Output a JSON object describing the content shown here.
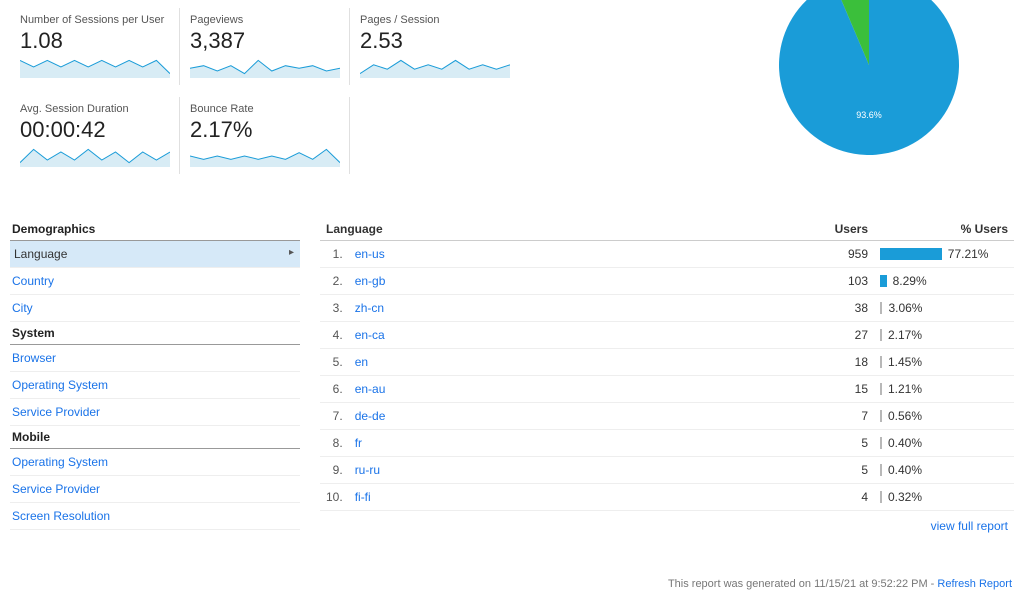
{
  "colors": {
    "primary": "#1a9cd8",
    "accent": "#3bbf3b",
    "link": "#1a73e8",
    "sparkFill": "#d8ecf5",
    "sparkLine": "#1a9cd8",
    "divider": "#e0e0e0",
    "barSecondary": "#b8b8b8"
  },
  "metrics": [
    {
      "label": "Number of Sessions per User",
      "value": "1.08",
      "spark": [
        12,
        11,
        12,
        11,
        12,
        11,
        12,
        11,
        12,
        11,
        12,
        10
      ]
    },
    {
      "label": "Pageviews",
      "value": "3,387",
      "spark": [
        11,
        12,
        10,
        12,
        9,
        14,
        10,
        12,
        11,
        12,
        10,
        11
      ]
    },
    {
      "label": "Pages / Session",
      "value": "2.53",
      "spark": [
        9,
        11,
        10,
        12,
        10,
        11,
        10,
        12,
        10,
        11,
        10,
        11
      ]
    },
    {
      "label": "Avg. Session Duration",
      "value": "00:00:42",
      "spark": [
        8,
        13,
        9,
        12,
        9,
        13,
        9,
        12,
        8,
        12,
        9,
        12
      ]
    },
    {
      "label": "Bounce Rate",
      "value": "2.17%",
      "spark": [
        11,
        10,
        11,
        10,
        11,
        10,
        11,
        10,
        12,
        10,
        13,
        9
      ]
    }
  ],
  "pie": {
    "slices": [
      {
        "pct": 93.6,
        "color": "#1a9cd8",
        "label": "93.6%"
      },
      {
        "pct": 6.4,
        "color": "#3bbf3b",
        "label": ""
      }
    ]
  },
  "nav": [
    {
      "category": "Demographics",
      "items": [
        {
          "label": "Language",
          "active": true
        },
        {
          "label": "Country",
          "active": false
        },
        {
          "label": "City",
          "active": false
        }
      ]
    },
    {
      "category": "System",
      "items": [
        {
          "label": "Browser",
          "active": false
        },
        {
          "label": "Operating System",
          "active": false
        },
        {
          "label": "Service Provider",
          "active": false
        }
      ]
    },
    {
      "category": "Mobile",
      "items": [
        {
          "label": "Operating System",
          "active": false
        },
        {
          "label": "Service Provider",
          "active": false
        },
        {
          "label": "Screen Resolution",
          "active": false
        }
      ]
    }
  ],
  "table": {
    "columns": [
      "Language",
      "Users",
      "% Users"
    ],
    "rows": [
      {
        "rank": "1.",
        "lang": "en-us",
        "users": "959",
        "pct": "77.21%",
        "barPct": 77.21,
        "barColor": "#1a9cd8"
      },
      {
        "rank": "2.",
        "lang": "en-gb",
        "users": "103",
        "pct": "8.29%",
        "barPct": 8.29,
        "barColor": "#1a9cd8"
      },
      {
        "rank": "3.",
        "lang": "zh-cn",
        "users": "38",
        "pct": "3.06%",
        "barPct": 3.06,
        "barColor": "#b8b8b8"
      },
      {
        "rank": "4.",
        "lang": "en-ca",
        "users": "27",
        "pct": "2.17%",
        "barPct": 2.17,
        "barColor": "#b8b8b8"
      },
      {
        "rank": "5.",
        "lang": "en",
        "users": "18",
        "pct": "1.45%",
        "barPct": 1.45,
        "barColor": "#b8b8b8"
      },
      {
        "rank": "6.",
        "lang": "en-au",
        "users": "15",
        "pct": "1.21%",
        "barPct": 1.21,
        "barColor": "#b8b8b8"
      },
      {
        "rank": "7.",
        "lang": "de-de",
        "users": "7",
        "pct": "0.56%",
        "barPct": 0.56,
        "barColor": "#b8b8b8"
      },
      {
        "rank": "8.",
        "lang": "fr",
        "users": "5",
        "pct": "0.40%",
        "barPct": 0.4,
        "barColor": "#b8b8b8"
      },
      {
        "rank": "9.",
        "lang": "ru-ru",
        "users": "5",
        "pct": "0.40%",
        "barPct": 0.4,
        "barColor": "#b8b8b8"
      },
      {
        "rank": "10.",
        "lang": "fi-fi",
        "users": "4",
        "pct": "0.32%",
        "barPct": 0.32,
        "barColor": "#b8b8b8"
      }
    ],
    "viewFull": "view full report"
  },
  "footer": {
    "text": "This report was generated on 11/15/21 at 9:52:22 PM - ",
    "link": "Refresh Report"
  }
}
